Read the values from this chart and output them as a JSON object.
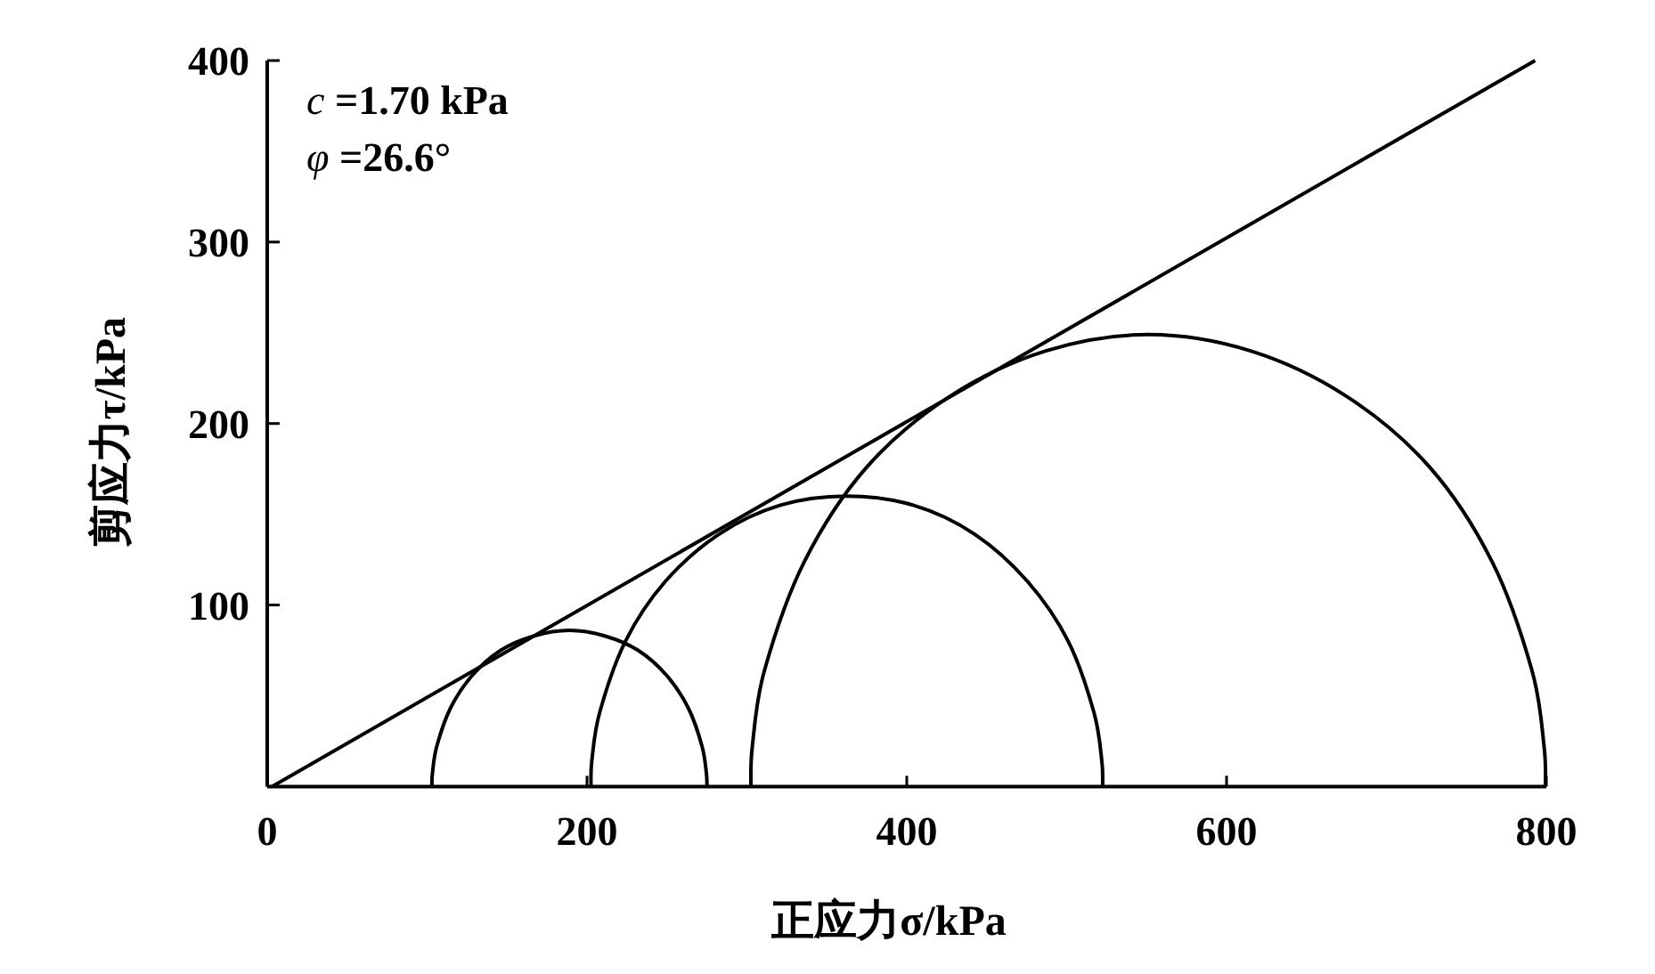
{
  "chart_data": {
    "type": "line",
    "xlabel": "正应力σ/kPa",
    "ylabel": "剪应力τ/kPa",
    "annotations": [
      "c =1.70 kPa",
      "φ =26.6°"
    ],
    "xlim": [
      0,
      800
    ],
    "xticks": [
      0,
      200,
      400,
      600,
      800
    ],
    "ylim": [
      0,
      400
    ],
    "yticks": [
      100,
      200,
      300,
      400
    ],
    "series": [
      {
        "color": "#000000",
        "x": [
          3,
          793
        ],
        "values": [
          0,
          400
        ]
      },
      {
        "color": "#000000",
        "x": [
          103,
          103.3,
          106,
          114.5,
          128,
          146,
          167,
          189,
          211,
          232,
          250,
          263.5,
          272,
          274.7,
          275
        ],
        "values": [
          0,
          7,
          22,
          43,
          61,
          75,
          83,
          86,
          83,
          75,
          61,
          43,
          22,
          7,
          0
        ]
      },
      {
        "color": "#000000",
        "x": [
          202.5,
          203,
          208,
          224,
          249,
          282.5,
          321,
          362.5,
          404,
          442.5,
          475.5,
          501,
          517,
          522,
          522.5
        ],
        "values": [
          0,
          14,
          41,
          80,
          113,
          139,
          155,
          160,
          155,
          139,
          113,
          80,
          41,
          14,
          0
        ]
      },
      {
        "color": "#000000",
        "x": [
          302.5,
          303.4,
          311,
          336,
          375,
          427,
          487,
          551,
          615,
          675,
          727,
          766,
          791,
          798.6,
          799.5
        ],
        "values": [
          0,
          22,
          64,
          124,
          176,
          215,
          240,
          249,
          240,
          215,
          176,
          124,
          64,
          22,
          0
        ]
      }
    ]
  }
}
